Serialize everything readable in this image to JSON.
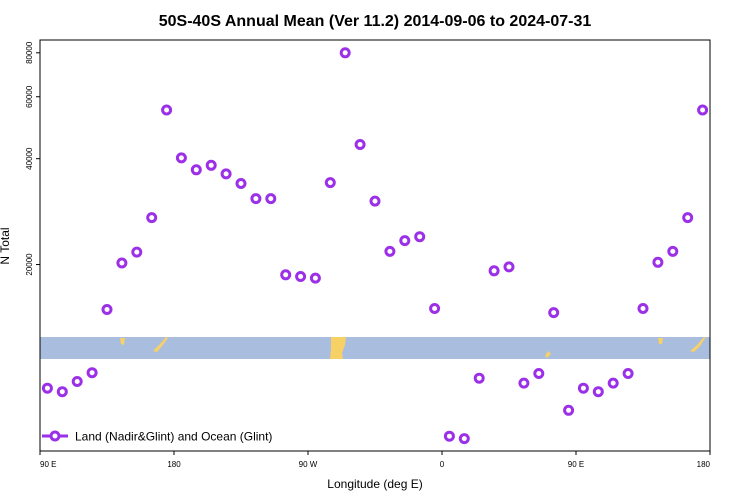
{
  "chart_data": {
    "type": "scatter",
    "title": "50S-40S Annual Mean (Ver 11.2)   2014-09-06 to 2024-07-31",
    "xlabel": "Longitude (deg E)",
    "ylabel": "N Total",
    "x_ticks": [
      {
        "value": 90,
        "label": "90 E"
      },
      {
        "value": 180,
        "label": "180"
      },
      {
        "value": 270,
        "label": "90 W"
      },
      {
        "value": 360,
        "label": "0"
      },
      {
        "value": 450,
        "label": "90 E"
      },
      {
        "value": 540,
        "label": "180"
      }
    ],
    "y_ticks": [
      20000,
      40000,
      60000,
      80000
    ],
    "xlim": [
      90,
      540
    ],
    "y_scale": "log",
    "ylim": [
      5900,
      87000
    ],
    "grid": false,
    "legend": {
      "position": "bottom-left",
      "label": "Land (Nadir&Glint) and Ocean (Glint)"
    },
    "colors": {
      "series": "#9b30e8",
      "land_band": "#a9bedf",
      "land_patch": "#f7d066"
    },
    "series": [
      {
        "name": "Land (Nadir&Glint) and Ocean (Glint)",
        "points": [
          [
            95,
            8900
          ],
          [
            105,
            8700
          ],
          [
            115,
            9300
          ],
          [
            125,
            9850
          ],
          [
            135,
            14900
          ],
          [
            145,
            20200
          ],
          [
            155,
            21700
          ],
          [
            165,
            27200
          ],
          [
            175,
            55000
          ],
          [
            185,
            40200
          ],
          [
            195,
            37200
          ],
          [
            205,
            38300
          ],
          [
            215,
            36200
          ],
          [
            225,
            34000
          ],
          [
            235,
            30800
          ],
          [
            245,
            30800
          ],
          [
            255,
            18700
          ],
          [
            265,
            18500
          ],
          [
            275,
            18300
          ],
          [
            285,
            34200
          ],
          [
            295,
            80000
          ],
          [
            305,
            43900
          ],
          [
            315,
            30300
          ],
          [
            325,
            21800
          ],
          [
            335,
            23400
          ],
          [
            345,
            24000
          ],
          [
            355,
            15000
          ],
          [
            365,
            6500
          ],
          [
            375,
            6400
          ],
          [
            385,
            9500
          ],
          [
            395,
            19200
          ],
          [
            405,
            19700
          ],
          [
            415,
            9200
          ],
          [
            425,
            9800
          ],
          [
            435,
            14600
          ],
          [
            445,
            7700
          ],
          [
            455,
            8900
          ],
          [
            465,
            8700
          ],
          [
            475,
            9200
          ],
          [
            485,
            9800
          ],
          [
            495,
            15000
          ],
          [
            505,
            20300
          ],
          [
            515,
            21800
          ],
          [
            525,
            27200
          ],
          [
            535,
            55000
          ]
        ]
      }
    ]
  }
}
